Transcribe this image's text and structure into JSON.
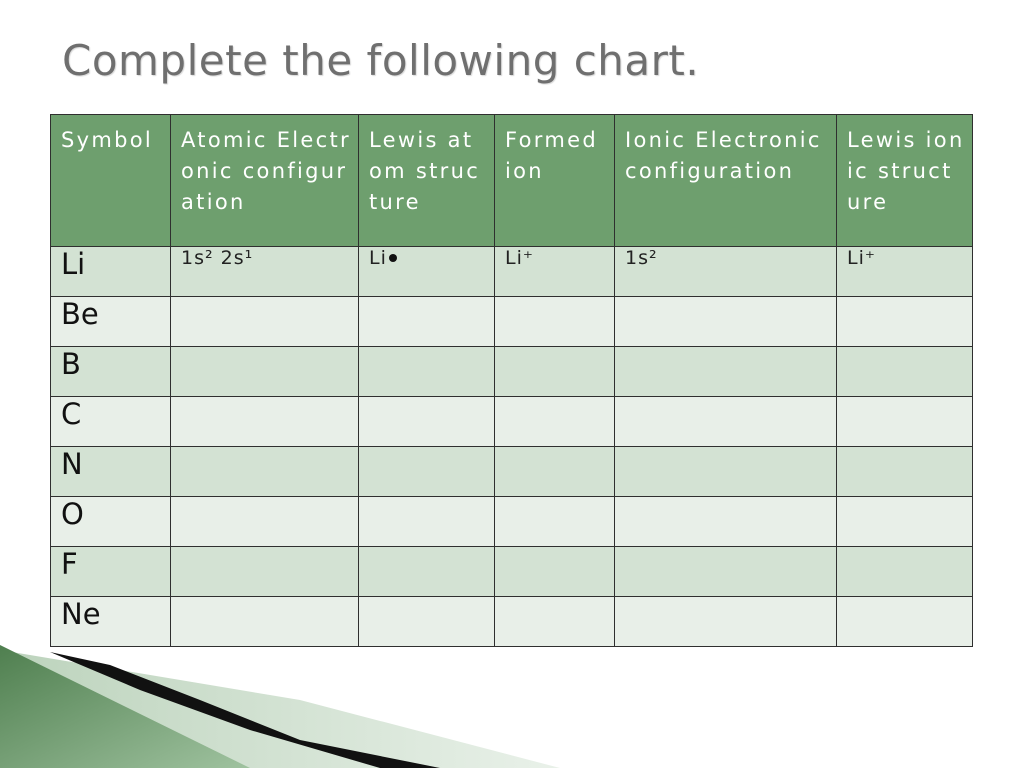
{
  "title": "Complete the following chart.",
  "headers": [
    "Symbol",
    "Atomic Electronic configuration",
    "Lewis atom structure",
    "Formed ion",
    "Ionic Electronic configuration",
    "Lewis ionic structure"
  ],
  "rows": [
    {
      "symbol": "Li",
      "atomic_config": "1s² 2s¹",
      "lewis_atom": "Li",
      "formed_ion": "Li⁺",
      "ionic_config": "1s²",
      "lewis_ionic": "Li⁺"
    },
    {
      "symbol": "Be",
      "atomic_config": "",
      "lewis_atom": "",
      "formed_ion": "",
      "ionic_config": "",
      "lewis_ionic": ""
    },
    {
      "symbol": "B",
      "atomic_config": "",
      "lewis_atom": "",
      "formed_ion": "",
      "ionic_config": "",
      "lewis_ionic": ""
    },
    {
      "symbol": "C",
      "atomic_config": "",
      "lewis_atom": "",
      "formed_ion": "",
      "ionic_config": "",
      "lewis_ionic": ""
    },
    {
      "symbol": "N",
      "atomic_config": "",
      "lewis_atom": "",
      "formed_ion": "",
      "ionic_config": "",
      "lewis_ionic": ""
    },
    {
      "symbol": "O",
      "atomic_config": "",
      "lewis_atom": "",
      "formed_ion": "",
      "ionic_config": "",
      "lewis_ionic": ""
    },
    {
      "symbol": "F",
      "atomic_config": "",
      "lewis_atom": "",
      "formed_ion": "",
      "ionic_config": "",
      "lewis_ionic": ""
    },
    {
      "symbol": "Ne",
      "atomic_config": "",
      "lewis_atom": "",
      "formed_ion": "",
      "ionic_config": "",
      "lewis_ionic": ""
    }
  ],
  "colors": {
    "header_bg": "#6e9f6e",
    "row_odd_bg": "#d3e2d3",
    "row_even_bg": "#e8efe8",
    "title_text": "#6f6f6f"
  }
}
